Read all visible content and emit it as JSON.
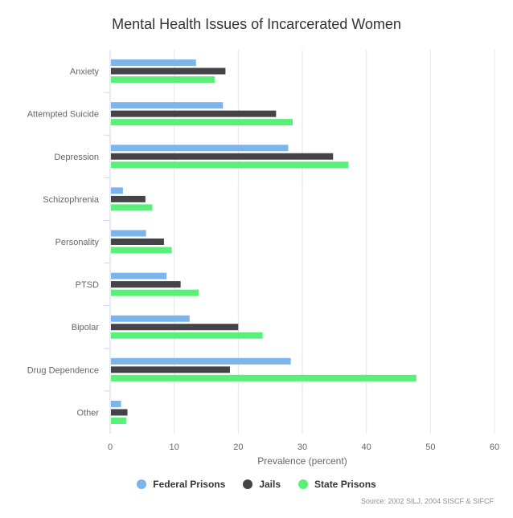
{
  "chart_data": {
    "type": "bar",
    "orientation": "horizontal",
    "title": "Mental Health Issues of Incarcerated Women",
    "xlabel": "Prevalence (percent)",
    "ylabel": "",
    "xlim": [
      0,
      60
    ],
    "ticks": [
      0,
      10,
      20,
      30,
      40,
      50,
      60
    ],
    "grid": true,
    "legend_position": "bottom",
    "categories": [
      "Anxiety",
      "Attempted Suicide",
      "Depression",
      "Schizophrenia",
      "Personality",
      "PTSD",
      "Bipolar",
      "Drug Dependence",
      "Other"
    ],
    "series": [
      {
        "name": "Federal Prisons",
        "color": "#7cb5ec",
        "values": [
          13.4,
          17.6,
          27.8,
          2.0,
          5.6,
          8.8,
          12.4,
          28.2,
          1.7
        ]
      },
      {
        "name": "Jails",
        "color": "#434348",
        "values": [
          18.0,
          25.9,
          34.8,
          5.5,
          8.4,
          11.0,
          20.0,
          18.7,
          2.7
        ]
      },
      {
        "name": "State Prisons",
        "color": "#59f07a",
        "values": [
          16.3,
          28.5,
          37.2,
          6.6,
          9.6,
          13.8,
          23.8,
          47.8,
          2.5
        ]
      }
    ],
    "source": "Source: 2002 SILJ, 2004 SISCF & SIFCF"
  }
}
